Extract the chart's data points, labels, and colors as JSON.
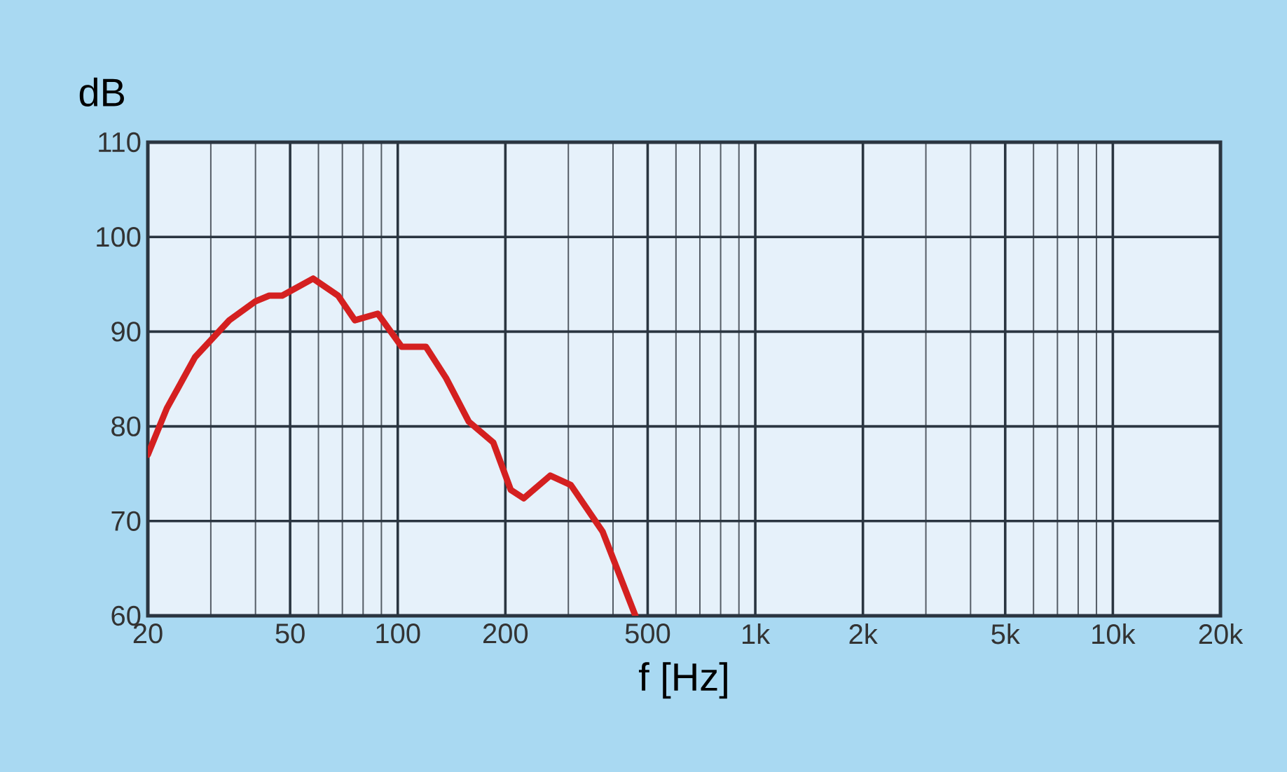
{
  "chart_data": {
    "type": "line",
    "xlabel": "f [Hz]",
    "ylabel": "dB",
    "log": "x",
    "grid": true,
    "marker": "none",
    "line_style": "solid",
    "xlim": [
      20,
      20000
    ],
    "ylim": [
      60,
      110
    ],
    "xticks": [
      20,
      50,
      100,
      200,
      500,
      {
        "value": 1000,
        "label": "1k"
      },
      {
        "value": 2000,
        "label": "2k"
      },
      {
        "value": 5000,
        "label": "5k"
      },
      {
        "value": 10000,
        "label": "10k"
      },
      {
        "value": 20000,
        "label": "20k"
      }
    ],
    "yticks": [
      60,
      70,
      80,
      90,
      100,
      110
    ],
    "series": [
      {
        "color": "#d42020",
        "x": [
          20,
          22.6,
          27.1,
          33.8,
          40,
          43.7,
          47.5,
          58,
          68.1,
          75.9,
          87.9,
          102.6,
          119.9,
          136.5,
          158,
          185,
          207,
          225,
          267,
          305,
          374,
          462
        ],
        "values": [
          77,
          81.9,
          87.3,
          91.2,
          93.2,
          93.8,
          93.8,
          95.6,
          93.8,
          91.2,
          91.9,
          88.4,
          88.4,
          85.1,
          80.5,
          78.3,
          73.3,
          72.4,
          74.8,
          73.8,
          68.9,
          60
        ]
      }
    ]
  }
}
